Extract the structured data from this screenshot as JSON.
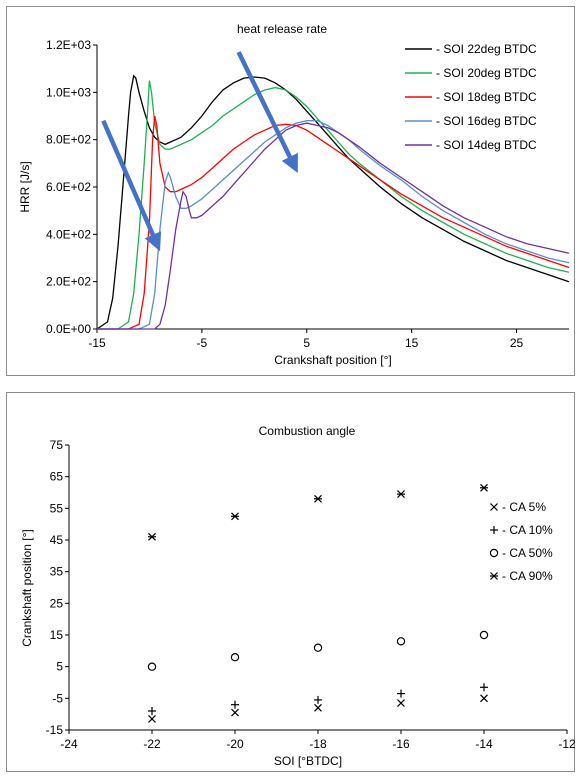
{
  "chart_data": [
    {
      "type": "line",
      "title": "heat release rate",
      "xlabel": "Crankshaft position [°]",
      "ylabel": "HRR [J/s]",
      "xlim": [
        -15,
        30
      ],
      "ylim": [
        0,
        1200
      ],
      "x_ticks": [
        -15,
        -5,
        5,
        15,
        25
      ],
      "x_tick_labels": [
        "-15",
        "-5",
        "5",
        "15",
        "25"
      ],
      "y_ticks": [
        0,
        200,
        400,
        600,
        800,
        1000,
        1200
      ],
      "y_tick_labels": [
        "0.0E+00",
        "2.0E+02",
        "4.0E+02",
        "6.0E+02",
        "8.0E+02",
        "1.0E+03",
        "1.2E+03"
      ],
      "grid": false,
      "legend_position": "top-right",
      "arrow_color": "#4472c4",
      "series": [
        {
          "name": "- SOI 22deg BTDC",
          "color": "#000000",
          "x": [
            -15,
            -14,
            -13.5,
            -13,
            -12.5,
            -12,
            -11.8,
            -11.5,
            -11.3,
            -11,
            -10.5,
            -10,
            -9.5,
            -9,
            -8.5,
            -8,
            -7.5,
            -7,
            -6,
            -5,
            -4,
            -3,
            -2,
            -1,
            0,
            1,
            2,
            3,
            4,
            5,
            6,
            7,
            8,
            9,
            10,
            12,
            14,
            16,
            18,
            20,
            22,
            24,
            26,
            28,
            30
          ],
          "y": [
            0,
            30,
            130,
            350,
            620,
            900,
            1000,
            1070,
            1060,
            1000,
            920,
            850,
            810,
            790,
            780,
            790,
            800,
            810,
            850,
            900,
            960,
            1010,
            1040,
            1060,
            1065,
            1060,
            1040,
            1010,
            970,
            920,
            870,
            820,
            770,
            720,
            680,
            600,
            530,
            470,
            420,
            370,
            330,
            290,
            260,
            230,
            200
          ]
        },
        {
          "name": "- SOI 20deg BTDC",
          "color": "#20b050",
          "x": [
            -15,
            -13,
            -12,
            -11.5,
            -11,
            -10.5,
            -10.2,
            -10,
            -9.8,
            -9.5,
            -9,
            -8.5,
            -8,
            -7.5,
            -7,
            -6,
            -5,
            -4,
            -3,
            -2,
            -1,
            0,
            1,
            2,
            3,
            4,
            5,
            6,
            7,
            8,
            9,
            10,
            12,
            14,
            16,
            18,
            20,
            22,
            24,
            26,
            28,
            30
          ],
          "y": [
            0,
            0,
            30,
            150,
            400,
            700,
            900,
            1050,
            1000,
            870,
            780,
            760,
            760,
            770,
            780,
            800,
            830,
            860,
            900,
            930,
            960,
            990,
            1010,
            1020,
            1010,
            980,
            940,
            890,
            840,
            790,
            740,
            700,
            630,
            560,
            500,
            450,
            400,
            360,
            320,
            290,
            260,
            240
          ]
        },
        {
          "name": "- SOI 18deg BTDC",
          "color": "#ff0000",
          "x": [
            -15,
            -12,
            -11,
            -10.5,
            -10,
            -9.7,
            -9.5,
            -9.3,
            -9,
            -8.5,
            -8,
            -7.5,
            -7,
            -6,
            -5,
            -4,
            -3,
            -2,
            -1,
            0,
            1,
            2,
            3,
            4,
            5,
            6,
            7,
            8,
            9,
            10,
            12,
            14,
            16,
            18,
            20,
            22,
            24,
            26,
            28,
            30
          ],
          "y": [
            0,
            0,
            20,
            150,
            450,
            800,
            900,
            860,
            700,
            600,
            580,
            580,
            590,
            610,
            640,
            680,
            720,
            760,
            790,
            820,
            840,
            860,
            865,
            860,
            840,
            810,
            780,
            750,
            720,
            690,
            630,
            570,
            520,
            470,
            430,
            390,
            350,
            320,
            290,
            260
          ]
        },
        {
          "name": "- SOI 16deg BTDC",
          "color": "#5b8ec9",
          "x": [
            -15,
            -11,
            -10,
            -9.5,
            -9,
            -8.5,
            -8.2,
            -8,
            -7.5,
            -7,
            -6.5,
            -6,
            -5,
            -4,
            -3,
            -2,
            -1,
            0,
            1,
            2,
            3,
            4,
            5,
            6,
            7,
            8,
            9,
            10,
            12,
            14,
            16,
            18,
            20,
            22,
            24,
            26,
            28,
            30
          ],
          "y": [
            0,
            0,
            20,
            150,
            420,
            620,
            660,
            640,
            560,
            510,
            510,
            520,
            550,
            590,
            630,
            670,
            710,
            750,
            790,
            820,
            850,
            870,
            880,
            880,
            860,
            830,
            800,
            760,
            690,
            630,
            560,
            500,
            450,
            400,
            360,
            330,
            300,
            280
          ]
        },
        {
          "name": "- SOI 14deg BTDC",
          "color": "#7030a0",
          "x": [
            -15,
            -9.5,
            -9,
            -8.5,
            -8,
            -7.5,
            -7,
            -6.8,
            -6.5,
            -6.2,
            -6,
            -5.5,
            -5,
            -4,
            -3,
            -2,
            -1,
            0,
            1,
            2,
            3,
            4,
            5,
            6,
            7,
            8,
            9,
            10,
            12,
            14,
            16,
            18,
            20,
            22,
            24,
            26,
            28,
            30
          ],
          "y": [
            0,
            0,
            20,
            100,
            250,
            420,
            540,
            580,
            560,
            500,
            470,
            470,
            480,
            520,
            560,
            610,
            660,
            710,
            760,
            800,
            840,
            860,
            870,
            860,
            850,
            830,
            800,
            770,
            700,
            640,
            580,
            520,
            470,
            430,
            390,
            360,
            340,
            320
          ]
        }
      ]
    },
    {
      "type": "scatter",
      "title": "Combustion angle",
      "xlabel": "SOI [°BTDC]",
      "ylabel": "Crankshaft position [°]",
      "xlim": [
        -24,
        -12
      ],
      "ylim": [
        -15,
        75
      ],
      "x_ticks": [
        -24,
        -22,
        -20,
        -18,
        -16,
        -14,
        -12
      ],
      "x_tick_labels": [
        "-24",
        "-22",
        "-20",
        "-18",
        "-16",
        "-14",
        "-12"
      ],
      "y_ticks": [
        -15,
        -5,
        5,
        15,
        25,
        35,
        45,
        55,
        65,
        75
      ],
      "y_tick_labels": [
        "-15",
        "-5",
        "5",
        "15",
        "25",
        "35",
        "45",
        "55",
        "65",
        "75"
      ],
      "grid": false,
      "legend_position": "right",
      "series": [
        {
          "name": "- CA 5%",
          "marker": "x",
          "x": [
            -22,
            -20,
            -18,
            -16,
            -14
          ],
          "y": [
            -11.5,
            -9.5,
            -8,
            -6.5,
            -5
          ]
        },
        {
          "name": "- CA 10%",
          "marker": "plus",
          "x": [
            -22,
            -20,
            -18,
            -16,
            -14
          ],
          "y": [
            -9,
            -7,
            -5.5,
            -3.5,
            -1.5
          ]
        },
        {
          "name": "- CA 50%",
          "marker": "circle",
          "x": [
            -22,
            -20,
            -18,
            -16,
            -14
          ],
          "y": [
            5,
            8,
            11,
            13,
            15
          ]
        },
        {
          "name": "- CA 90%",
          "marker": "star",
          "x": [
            -22,
            -20,
            -18,
            -16,
            -14
          ],
          "y": [
            46,
            52.5,
            58,
            59.5,
            61.5
          ]
        }
      ]
    }
  ]
}
